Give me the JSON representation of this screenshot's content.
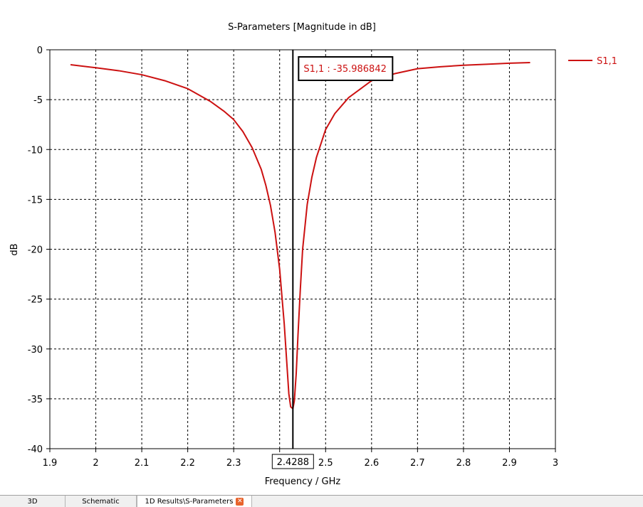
{
  "chart_data": {
    "type": "line",
    "title": "S-Parameters [Magnitude in dB]",
    "xlabel": "Frequency / GHz",
    "ylabel": "dB",
    "xlim": [
      1.9,
      3.0
    ],
    "ylim": [
      -40,
      0
    ],
    "x_ticks": [
      1.9,
      2,
      2.1,
      2.2,
      2.3,
      2.4,
      2.5,
      2.6,
      2.7,
      2.8,
      2.9,
      3
    ],
    "x_tick_labels": [
      "1.9",
      "2",
      "2.1",
      "2.2",
      "2.3",
      "",
      "2.5",
      "2.6",
      "2.7",
      "2.8",
      "2.9",
      "3"
    ],
    "y_ticks": [
      0,
      -5,
      -10,
      -15,
      -20,
      -25,
      -30,
      -35,
      -40
    ],
    "y_tick_labels": [
      "0",
      "-5",
      "-10",
      "-15",
      "-20",
      "-25",
      "-30",
      "-35",
      "-40"
    ],
    "grid": true,
    "legend_position": "top-right",
    "series": [
      {
        "name": "S1,1",
        "color": "#cc1111",
        "x": [
          1.945,
          2.0,
          2.05,
          2.1,
          2.15,
          2.2,
          2.25,
          2.28,
          2.3,
          2.32,
          2.34,
          2.36,
          2.37,
          2.38,
          2.39,
          2.4,
          2.41,
          2.415,
          2.42,
          2.424,
          2.4288,
          2.432,
          2.436,
          2.44,
          2.445,
          2.45,
          2.46,
          2.47,
          2.48,
          2.5,
          2.52,
          2.55,
          2.6,
          2.65,
          2.7,
          2.75,
          2.8,
          2.85,
          2.9,
          2.945
        ],
        "values": [
          -1.5,
          -1.8,
          -2.1,
          -2.5,
          -3.1,
          -3.9,
          -5.2,
          -6.2,
          -7.0,
          -8.2,
          -9.8,
          -12.0,
          -13.6,
          -15.6,
          -18.3,
          -22.0,
          -27.5,
          -31.0,
          -34.5,
          -35.8,
          -35.986842,
          -35.2,
          -32.5,
          -28.5,
          -24.0,
          -20.0,
          -15.5,
          -12.8,
          -10.8,
          -8.0,
          -6.4,
          -4.8,
          -3.1,
          -2.4,
          -1.9,
          -1.7,
          -1.55,
          -1.45,
          -1.35,
          -1.28
        ]
      }
    ],
    "marker": {
      "x": 2.4288,
      "x_label": "2.4288",
      "annotation": "S1,1 : -35.986842"
    }
  },
  "tabs": [
    {
      "label": "3D"
    },
    {
      "label": "Schematic"
    },
    {
      "label": "1D Results\\S-Parameters"
    }
  ]
}
